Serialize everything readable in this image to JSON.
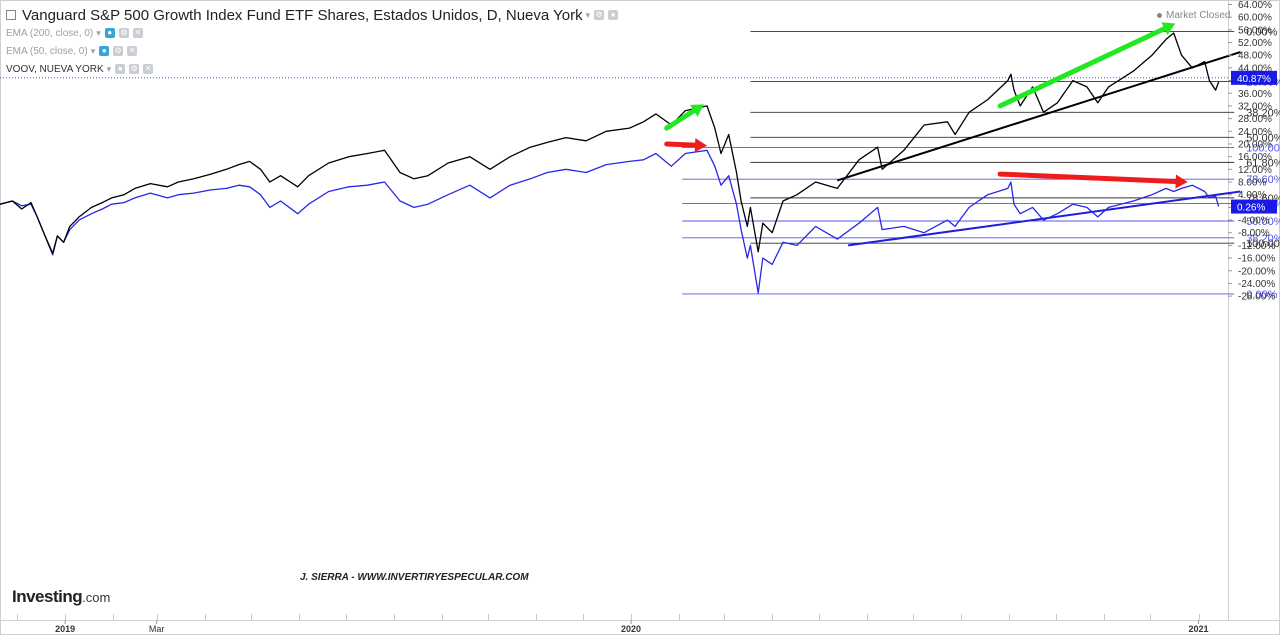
{
  "header": {
    "title": "Vanguard S&P 500 Growth Index Fund ETF Shares, Estados Unidos, D, Nueva York",
    "indicators": [
      "EMA (200, close, 0)",
      "EMA (50, close, 0)",
      "VOOV, NUEVA YORK"
    ],
    "status": "Market Closed"
  },
  "logo": {
    "main": "Investing",
    "suffix": ".com"
  },
  "watermark": "J. SIERRA - WWW.INVERTIRYESPECULAR.COM",
  "colors": {
    "main_series": "#000000",
    "compare_series": "#2828e6",
    "up_arrow": "#22e822",
    "down_arrow": "#ee1c1c",
    "price_tag_main": "#1a1ae6",
    "price_tag_compare": "#1a1ae6",
    "fib_main": "#333333",
    "fib_compare": "#5555ee"
  },
  "chart_data": {
    "type": "line",
    "ylim": [
      -30,
      64
    ],
    "yaxis_side": "right",
    "y_ticks": [
      "64.00%",
      "60.00%",
      "56.00%",
      "52.00%",
      "48.00%",
      "44.00%",
      "40.00%",
      "36.00%",
      "32.00%",
      "28.00%",
      "24.00%",
      "20.00%",
      "16.00%",
      "12.00%",
      "8.00%",
      "4.00%",
      "0.00%",
      "-4.00%",
      "-8.00%",
      "-12.00%",
      "-16.00%",
      "-20.00%",
      "-24.00%",
      "-28.00%"
    ],
    "y_tick_values": [
      64,
      60,
      56,
      52,
      48,
      44,
      40,
      36,
      32,
      28,
      24,
      20,
      16,
      12,
      8,
      4,
      0,
      -4,
      -8,
      -12,
      -16,
      -20,
      -24,
      -28
    ],
    "x_domain": [
      "2018-11-20",
      "2021-01-20"
    ],
    "x_ticks": [
      {
        "label": "2019",
        "date": "2019-01-01",
        "bold": true
      },
      {
        "label": "Mar",
        "date": "2019-03-01",
        "bold": false
      },
      {
        "label": "2020",
        "date": "2020-01-01",
        "bold": true
      },
      {
        "label": "2021",
        "date": "2021-01-01",
        "bold": true
      }
    ],
    "last_values": [
      {
        "label": "40.87%",
        "value": 40.87,
        "series": "Vanguard S&P 500 Growth Index Fund ETF Shares"
      },
      {
        "label": "0.26%",
        "value": 0.26,
        "series": "VOOV, NUEVA YORK"
      }
    ],
    "series": [
      {
        "name": "Vanguard S&P 500 Growth Index Fund ETF Shares",
        "color": "#000000",
        "points": [
          [
            "2018-11-20",
            1
          ],
          [
            "2018-11-28",
            2
          ],
          [
            "2018-12-04",
            -0.5
          ],
          [
            "2018-12-10",
            1.5
          ],
          [
            "2018-12-14",
            -3
          ],
          [
            "2018-12-19",
            -9
          ],
          [
            "2018-12-24",
            -14.5
          ],
          [
            "2018-12-27",
            -9
          ],
          [
            "2018-12-31",
            -11
          ],
          [
            "2019-01-04",
            -6
          ],
          [
            "2019-01-10",
            -3
          ],
          [
            "2019-01-18",
            0
          ],
          [
            "2019-01-25",
            1.5
          ],
          [
            "2019-01-31",
            3
          ],
          [
            "2019-02-08",
            4
          ],
          [
            "2019-02-15",
            6
          ],
          [
            "2019-02-25",
            7.5
          ],
          [
            "2019-03-08",
            6.5
          ],
          [
            "2019-03-15",
            8
          ],
          [
            "2019-03-25",
            9
          ],
          [
            "2019-04-05",
            10.5
          ],
          [
            "2019-04-15",
            12
          ],
          [
            "2019-04-23",
            13.5
          ],
          [
            "2019-04-30",
            14.5
          ],
          [
            "2019-05-07",
            12
          ],
          [
            "2019-05-13",
            8
          ],
          [
            "2019-05-20",
            10
          ],
          [
            "2019-05-31",
            6.5
          ],
          [
            "2019-06-07",
            10
          ],
          [
            "2019-06-20",
            14
          ],
          [
            "2019-07-03",
            16
          ],
          [
            "2019-07-15",
            17
          ],
          [
            "2019-07-26",
            18
          ],
          [
            "2019-08-05",
            11
          ],
          [
            "2019-08-14",
            9
          ],
          [
            "2019-08-23",
            10
          ],
          [
            "2019-09-05",
            14
          ],
          [
            "2019-09-19",
            16
          ],
          [
            "2019-10-02",
            12
          ],
          [
            "2019-10-15",
            16
          ],
          [
            "2019-10-28",
            19
          ],
          [
            "2019-11-08",
            20.5
          ],
          [
            "2019-11-20",
            22
          ],
          [
            "2019-12-03",
            21
          ],
          [
            "2019-12-16",
            24
          ],
          [
            "2019-12-31",
            25
          ],
          [
            "2020-01-09",
            27
          ],
          [
            "2020-01-17",
            29.5
          ],
          [
            "2020-01-27",
            26
          ],
          [
            "2020-02-05",
            30.5
          ],
          [
            "2020-02-19",
            32
          ],
          [
            "2020-02-24",
            25
          ],
          [
            "2020-02-28",
            17
          ],
          [
            "2020-03-04",
            23
          ],
          [
            "2020-03-09",
            11
          ],
          [
            "2020-03-12",
            2
          ],
          [
            "2020-03-16",
            -6
          ],
          [
            "2020-03-18",
            0
          ],
          [
            "2020-03-23",
            -14
          ],
          [
            "2020-03-26",
            -5
          ],
          [
            "2020-04-01",
            -8
          ],
          [
            "2020-04-08",
            2
          ],
          [
            "2020-04-17",
            4
          ],
          [
            "2020-04-29",
            8
          ],
          [
            "2020-05-13",
            6
          ],
          [
            "2020-05-27",
            15
          ],
          [
            "2020-06-08",
            19
          ],
          [
            "2020-06-11",
            12
          ],
          [
            "2020-06-25",
            18
          ],
          [
            "2020-07-08",
            26
          ],
          [
            "2020-07-23",
            27
          ],
          [
            "2020-07-28",
            23
          ],
          [
            "2020-08-06",
            30
          ],
          [
            "2020-08-18",
            34
          ],
          [
            "2020-08-31",
            40
          ],
          [
            "2020-09-02",
            42
          ],
          [
            "2020-09-04",
            37
          ],
          [
            "2020-09-08",
            32
          ],
          [
            "2020-09-16",
            38
          ],
          [
            "2020-09-23",
            30
          ],
          [
            "2020-10-02",
            33
          ],
          [
            "2020-10-12",
            40
          ],
          [
            "2020-10-21",
            38
          ],
          [
            "2020-10-28",
            33
          ],
          [
            "2020-11-04",
            38
          ],
          [
            "2020-11-20",
            43
          ],
          [
            "2020-12-02",
            48
          ],
          [
            "2020-12-11",
            53
          ],
          [
            "2020-12-16",
            55
          ],
          [
            "2020-12-21",
            48
          ],
          [
            "2020-12-28",
            44
          ],
          [
            "2021-01-05",
            46
          ],
          [
            "2021-01-08",
            40
          ],
          [
            "2021-01-12",
            37
          ],
          [
            "2021-01-14",
            39.6
          ]
        ]
      },
      {
        "name": "VOOV, NUEVA YORK",
        "color": "#2828e6",
        "points": [
          [
            "2018-11-20",
            1
          ],
          [
            "2018-11-28",
            2
          ],
          [
            "2018-12-04",
            0.5
          ],
          [
            "2018-12-10",
            1
          ],
          [
            "2018-12-14",
            -3
          ],
          [
            "2018-12-19",
            -9
          ],
          [
            "2018-12-24",
            -15
          ],
          [
            "2018-12-27",
            -9
          ],
          [
            "2018-12-31",
            -11
          ],
          [
            "2019-01-04",
            -7
          ],
          [
            "2019-01-10",
            -4
          ],
          [
            "2019-01-18",
            -2
          ],
          [
            "2019-01-25",
            -0.5
          ],
          [
            "2019-01-31",
            1
          ],
          [
            "2019-02-08",
            1.5
          ],
          [
            "2019-02-15",
            3
          ],
          [
            "2019-02-25",
            4.5
          ],
          [
            "2019-03-08",
            3
          ],
          [
            "2019-03-15",
            4
          ],
          [
            "2019-03-25",
            4.5
          ],
          [
            "2019-04-05",
            5.5
          ],
          [
            "2019-04-15",
            6
          ],
          [
            "2019-04-23",
            7
          ],
          [
            "2019-04-30",
            6.5
          ],
          [
            "2019-05-07",
            4
          ],
          [
            "2019-05-13",
            0
          ],
          [
            "2019-05-20",
            2
          ],
          [
            "2019-05-31",
            -2
          ],
          [
            "2019-06-07",
            1
          ],
          [
            "2019-06-20",
            5
          ],
          [
            "2019-07-03",
            6.5
          ],
          [
            "2019-07-15",
            7
          ],
          [
            "2019-07-26",
            8
          ],
          [
            "2019-08-05",
            2
          ],
          [
            "2019-08-14",
            0
          ],
          [
            "2019-08-23",
            1
          ],
          [
            "2019-09-05",
            4
          ],
          [
            "2019-09-19",
            7
          ],
          [
            "2019-10-02",
            3
          ],
          [
            "2019-10-15",
            7
          ],
          [
            "2019-10-28",
            9
          ],
          [
            "2019-11-08",
            11
          ],
          [
            "2019-11-20",
            12
          ],
          [
            "2019-12-03",
            11
          ],
          [
            "2019-12-16",
            13.5
          ],
          [
            "2019-12-31",
            14.5
          ],
          [
            "2020-01-09",
            15
          ],
          [
            "2020-01-17",
            17
          ],
          [
            "2020-01-27",
            13
          ],
          [
            "2020-02-05",
            17
          ],
          [
            "2020-02-19",
            18
          ],
          [
            "2020-02-24",
            13
          ],
          [
            "2020-02-28",
            7
          ],
          [
            "2020-03-04",
            10
          ],
          [
            "2020-03-09",
            1
          ],
          [
            "2020-03-12",
            -7
          ],
          [
            "2020-03-16",
            -16
          ],
          [
            "2020-03-18",
            -12
          ],
          [
            "2020-03-23",
            -27
          ],
          [
            "2020-03-26",
            -16
          ],
          [
            "2020-04-01",
            -18
          ],
          [
            "2020-04-08",
            -11
          ],
          [
            "2020-04-17",
            -12
          ],
          [
            "2020-04-29",
            -6
          ],
          [
            "2020-05-13",
            -10
          ],
          [
            "2020-05-27",
            -5
          ],
          [
            "2020-06-08",
            0
          ],
          [
            "2020-06-11",
            -7
          ],
          [
            "2020-06-25",
            -6
          ],
          [
            "2020-07-08",
            -8
          ],
          [
            "2020-07-23",
            -4
          ],
          [
            "2020-07-28",
            -6
          ],
          [
            "2020-08-06",
            0
          ],
          [
            "2020-08-18",
            4
          ],
          [
            "2020-08-31",
            6
          ],
          [
            "2020-09-02",
            8
          ],
          [
            "2020-09-04",
            1
          ],
          [
            "2020-09-08",
            -2
          ],
          [
            "2020-09-16",
            0
          ],
          [
            "2020-09-23",
            -4
          ],
          [
            "2020-10-02",
            -2
          ],
          [
            "2020-10-12",
            1
          ],
          [
            "2020-10-21",
            0
          ],
          [
            "2020-10-28",
            -3
          ],
          [
            "2020-11-04",
            0
          ],
          [
            "2020-11-20",
            2
          ],
          [
            "2020-12-02",
            4
          ],
          [
            "2020-12-11",
            6
          ],
          [
            "2020-12-16",
            5
          ],
          [
            "2020-12-21",
            6
          ],
          [
            "2020-12-28",
            7
          ],
          [
            "2021-01-05",
            5
          ],
          [
            "2021-01-08",
            3
          ],
          [
            "2021-01-12",
            3.5
          ],
          [
            "2021-01-14",
            0.3
          ]
        ]
      }
    ],
    "fibonacci": [
      {
        "series": "Vanguard S&P 500 Growth Index Fund ETF Shares",
        "start": "2020-03-18",
        "end": "2021-01-24",
        "levels": [
          {
            "label": "0.00%",
            "value": 55.5
          },
          {
            "label": "23.60%",
            "value": 39.7
          },
          {
            "label": "38.20%",
            "value": 30.0
          },
          {
            "label": "50.00%",
            "value": 22.1
          },
          {
            "label": "61.80%",
            "value": 14.2
          },
          {
            "label": "78.60%",
            "value": 3.0
          },
          {
            "label": "100.00%",
            "value": -11.3
          }
        ]
      },
      {
        "series": "VOOV, NUEVA YORK",
        "start": "2020-02-03",
        "end": "2021-01-24",
        "levels": [
          {
            "label": "100.00%",
            "value": 18.9
          },
          {
            "label": "78.60%",
            "value": 8.9
          },
          {
            "label": "61.80%",
            "value": 1.2
          },
          {
            "label": "50.00%",
            "value": -4.3
          },
          {
            "label": "38.20%",
            "value": -9.6
          },
          {
            "label": "0.00%",
            "value": -27.3
          }
        ]
      }
    ],
    "trendlines": [
      {
        "series": "Vanguard S&P 500 Growth Index Fund ETF Shares",
        "from": [
          "2020-05-13",
          8.5
        ],
        "to": [
          "2021-01-28",
          49
        ]
      },
      {
        "series": "VOOV, NUEVA YORK",
        "from": [
          "2020-05-20",
          -12
        ],
        "to": [
          "2021-01-28",
          5
        ]
      }
    ],
    "arrows": [
      {
        "color": "up_arrow",
        "from": [
          "2020-01-24",
          25
        ],
        "to": [
          "2020-02-17",
          32.5
        ]
      },
      {
        "color": "up_arrow",
        "from": [
          "2020-08-26",
          32
        ],
        "to": [
          "2020-12-17",
          58
        ]
      },
      {
        "color": "down_arrow",
        "from": [
          "2020-01-24",
          20
        ],
        "to": [
          "2020-02-19",
          19.5
        ]
      },
      {
        "color": "down_arrow",
        "from": [
          "2020-08-26",
          10.5
        ],
        "to": [
          "2020-12-25",
          8
        ]
      }
    ]
  }
}
